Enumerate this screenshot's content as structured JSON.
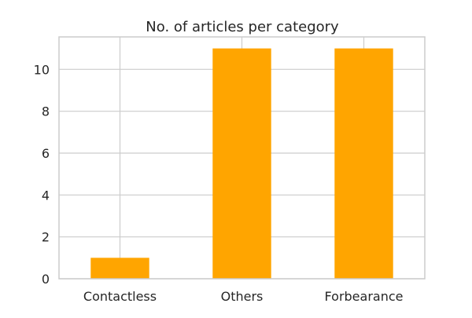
{
  "chart_data": {
    "type": "bar",
    "title": "No. of articles per category",
    "xlabel": "",
    "ylabel": "",
    "categories": [
      "Contactless",
      "Others",
      "Forbearance"
    ],
    "values": [
      1,
      11,
      11
    ],
    "ylim": [
      0,
      11.55
    ],
    "yticks": [
      0,
      2,
      4,
      6,
      8,
      10
    ],
    "grid": true,
    "legend": "none",
    "bar_color": "#FFA500",
    "grid_color": "#CCCCCC",
    "axes_edge_color": "#CCCCCC",
    "text_color": "#262626"
  }
}
